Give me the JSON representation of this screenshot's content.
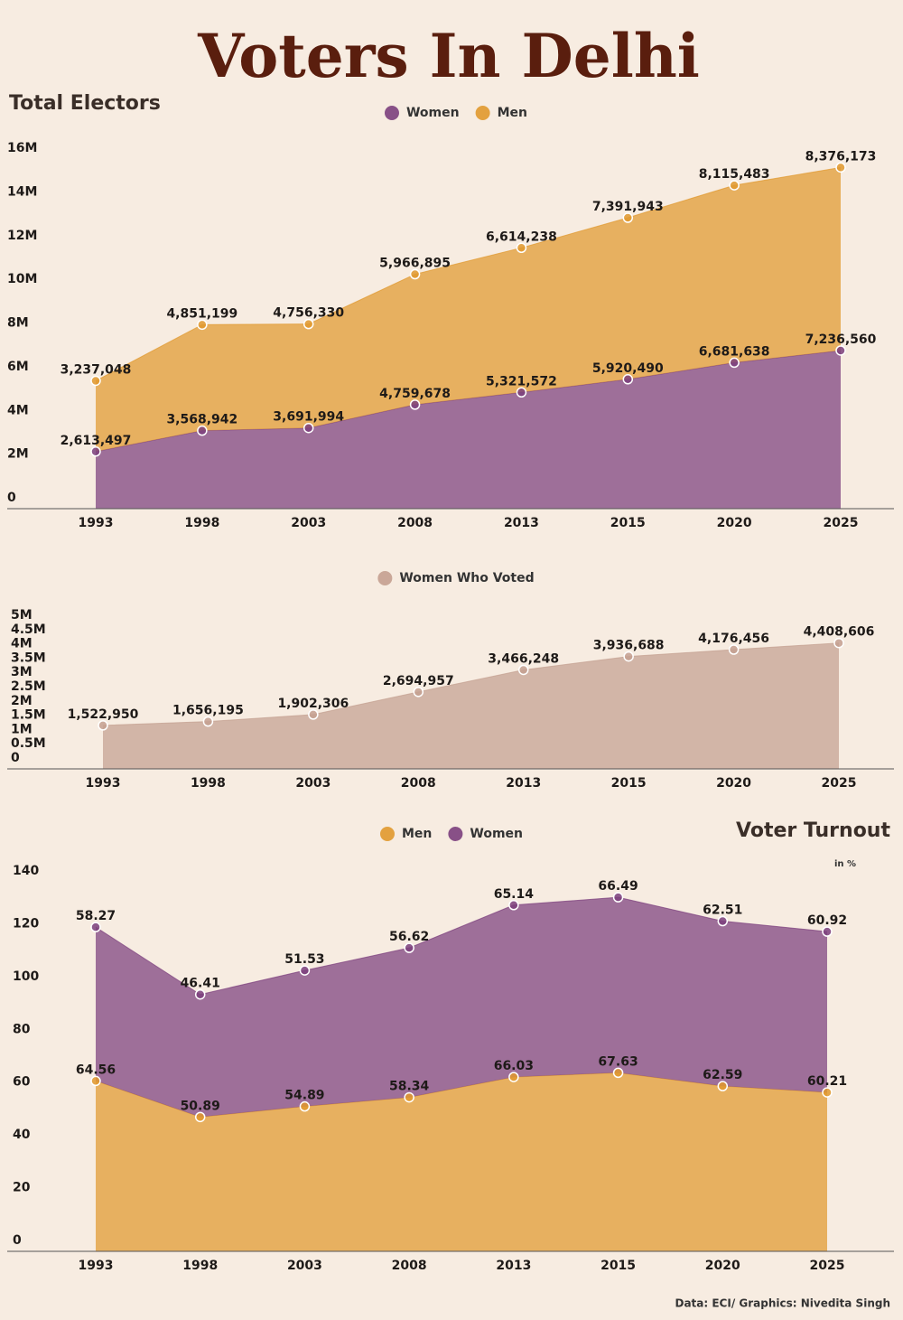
{
  "title": "Voters In Delhi",
  "source": "Data: ECI/ Graphics: Nivedita Singh",
  "chart_data": [
    {
      "type": "area",
      "title": "Total Electors",
      "stacked": true,
      "categories": [
        "1993",
        "1998",
        "2003",
        "2008",
        "2013",
        "2015",
        "2020",
        "2025"
      ],
      "series": [
        {
          "name": "Women",
          "color": "#7b3f7d",
          "values": [
            2613497,
            3568942,
            3691994,
            4759678,
            5321572,
            5920490,
            6681638,
            7236560
          ],
          "value_labels": [
            "2,613,497",
            "3,568,942",
            "3,691,994",
            "4,759,678",
            "5,321,572",
            "5,920,490",
            "6,681,638",
            "7,236,560"
          ]
        },
        {
          "name": "Men",
          "color": "#e0992e",
          "values": [
            3237048,
            4851199,
            4756330,
            5966895,
            6614238,
            7391943,
            8115483,
            8376173
          ],
          "value_labels": [
            "3,237,048",
            "4,851,199",
            "4,756,330",
            "5,966,895",
            "6,614,238",
            "7,391,943",
            "8,115,483",
            "8,376,173"
          ]
        }
      ],
      "ylim": [
        0,
        16000000
      ],
      "yticks": [
        0,
        {
          "value": 2000000,
          "label": "2M"
        },
        {
          "value": 4000000,
          "label": "4M"
        },
        {
          "value": 6000000,
          "label": "6M"
        },
        {
          "value": 8000000,
          "label": "8M"
        },
        {
          "value": 10000000,
          "label": "10M"
        },
        {
          "value": 12000000,
          "label": "12M"
        },
        {
          "value": 14000000,
          "label": "14M"
        },
        {
          "value": 16000000,
          "label": "16M"
        }
      ]
    },
    {
      "type": "area",
      "stacked": false,
      "categories": [
        "1993",
        "1998",
        "2003",
        "2008",
        "2013",
        "2015",
        "2020",
        "2025"
      ],
      "series": [
        {
          "name": "Women Who Voted",
          "color": "#c4a090",
          "values": [
            1522950,
            1656195,
            1902306,
            2694957,
            3466248,
            3936688,
            4176456,
            4408606
          ],
          "value_labels": [
            "1,522,950",
            "1,656,195",
            "1,902,306",
            "2,694,957",
            "3,466,248",
            "3,936,688",
            "4,176,456",
            "4,408,606"
          ]
        }
      ],
      "ylim": [
        0,
        5000000
      ],
      "yticks": [
        0,
        {
          "value": 500000,
          "label": "0.5M"
        },
        {
          "value": 1000000,
          "label": "1M"
        },
        {
          "value": 1500000,
          "label": "1.5M"
        },
        {
          "value": 2000000,
          "label": "2M"
        },
        {
          "value": 2500000,
          "label": "2.5M"
        },
        {
          "value": 3000000,
          "label": "3M"
        },
        {
          "value": 3500000,
          "label": "3.5M"
        },
        {
          "value": 4000000,
          "label": "4M"
        },
        {
          "value": 4500000,
          "label": "4.5M"
        },
        {
          "value": 5000000,
          "label": "5M"
        }
      ]
    },
    {
      "type": "area",
      "title": "Voter Turnout",
      "subtitle": "in %",
      "stacked": true,
      "categories": [
        "1993",
        "1998",
        "2003",
        "2008",
        "2013",
        "2015",
        "2020",
        "2025"
      ],
      "series": [
        {
          "name": "Men",
          "color": "#e0992e",
          "values": [
            64.56,
            50.89,
            54.89,
            58.34,
            66.03,
            67.63,
            62.59,
            60.21
          ]
        },
        {
          "name": "Women",
          "color": "#7b3f7d",
          "values": [
            58.27,
            46.41,
            51.53,
            56.62,
            65.14,
            66.49,
            62.51,
            60.92
          ]
        }
      ],
      "ylim": [
        0,
        140
      ],
      "yticks": [
        0,
        20,
        40,
        60,
        80,
        100,
        120,
        140
      ]
    }
  ]
}
